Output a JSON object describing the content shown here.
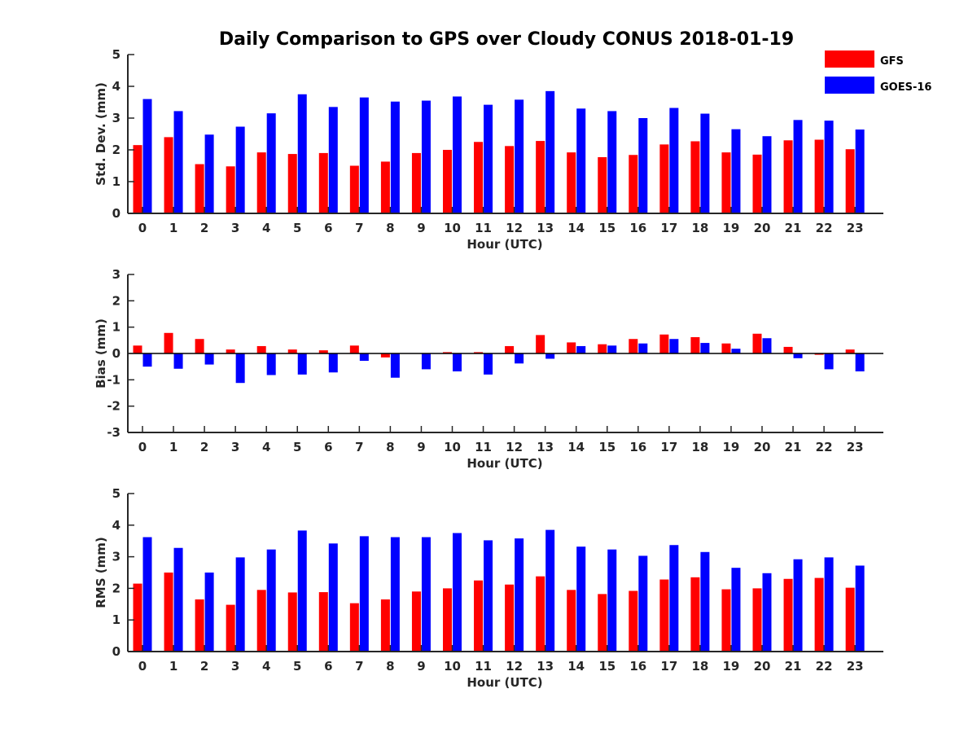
{
  "title": "Daily Comparison to GPS over Cloudy CONUS 2018-01-19",
  "colors": {
    "GFS": "#ff0000",
    "GOES-16": "#0000ff",
    "axis": "#262626"
  },
  "legend": {
    "placement": "top-right",
    "entries": [
      "GFS",
      "GOES-16"
    ]
  },
  "chart_data": [
    {
      "type": "bar",
      "ylabel": "Std. Dev. (mm)",
      "xlabel": "Hour (UTC)",
      "ylim": [
        0,
        5
      ],
      "yticks": [
        0,
        1,
        2,
        3,
        4,
        5
      ],
      "categories": [
        0,
        1,
        2,
        3,
        4,
        5,
        6,
        7,
        8,
        9,
        10,
        11,
        12,
        13,
        14,
        15,
        16,
        17,
        18,
        19,
        20,
        21,
        22,
        23
      ],
      "series": [
        {
          "name": "GFS",
          "values": [
            2.15,
            2.4,
            1.55,
            1.48,
            1.92,
            1.87,
            1.9,
            1.5,
            1.63,
            1.9,
            2.0,
            2.25,
            2.12,
            2.28,
            1.92,
            1.77,
            1.84,
            2.17,
            2.27,
            1.92,
            1.85,
            2.3,
            2.32,
            2.02
          ]
        },
        {
          "name": "GOES-16",
          "values": [
            3.6,
            3.22,
            2.48,
            2.73,
            3.15,
            3.75,
            3.35,
            3.65,
            3.52,
            3.55,
            3.68,
            3.42,
            3.58,
            3.85,
            3.3,
            3.22,
            3.0,
            3.32,
            3.14,
            2.65,
            2.43,
            2.94,
            2.92,
            2.64
          ]
        }
      ]
    },
    {
      "type": "bar",
      "ylabel": "Bias (mm)",
      "xlabel": "Hour (UTC)",
      "ylim": [
        -3,
        3
      ],
      "yticks": [
        -3,
        -2,
        -1,
        0,
        1,
        2,
        3
      ],
      "categories": [
        0,
        1,
        2,
        3,
        4,
        5,
        6,
        7,
        8,
        9,
        10,
        11,
        12,
        13,
        14,
        15,
        16,
        17,
        18,
        19,
        20,
        21,
        22,
        23
      ],
      "series": [
        {
          "name": "GFS",
          "values": [
            0.3,
            0.78,
            0.55,
            0.15,
            0.28,
            0.15,
            0.12,
            0.3,
            -0.15,
            0.0,
            0.05,
            0.05,
            0.28,
            0.7,
            0.42,
            0.35,
            0.55,
            0.72,
            0.62,
            0.38,
            0.75,
            0.25,
            -0.05,
            0.15
          ]
        },
        {
          "name": "GOES-16",
          "values": [
            -0.5,
            -0.58,
            -0.42,
            -1.12,
            -0.82,
            -0.8,
            -0.72,
            -0.28,
            -0.92,
            -0.6,
            -0.68,
            -0.8,
            -0.38,
            -0.2,
            0.28,
            0.3,
            0.38,
            0.55,
            0.4,
            0.18,
            0.58,
            -0.18,
            -0.6,
            -0.68
          ]
        }
      ]
    },
    {
      "type": "bar",
      "ylabel": "RMS (mm)",
      "xlabel": "Hour (UTC)",
      "ylim": [
        0,
        5
      ],
      "yticks": [
        0,
        1,
        2,
        3,
        4,
        5
      ],
      "categories": [
        0,
        1,
        2,
        3,
        4,
        5,
        6,
        7,
        8,
        9,
        10,
        11,
        12,
        13,
        14,
        15,
        16,
        17,
        18,
        19,
        20,
        21,
        22,
        23
      ],
      "series": [
        {
          "name": "GFS",
          "values": [
            2.15,
            2.5,
            1.65,
            1.48,
            1.95,
            1.87,
            1.88,
            1.53,
            1.65,
            1.9,
            2.0,
            2.25,
            2.12,
            2.38,
            1.95,
            1.82,
            1.92,
            2.28,
            2.35,
            1.97,
            2.0,
            2.3,
            2.33,
            2.02
          ]
        },
        {
          "name": "GOES-16",
          "values": [
            3.62,
            3.28,
            2.5,
            2.98,
            3.23,
            3.83,
            3.42,
            3.65,
            3.62,
            3.62,
            3.75,
            3.52,
            3.58,
            3.85,
            3.32,
            3.23,
            3.03,
            3.37,
            3.15,
            2.65,
            2.48,
            2.92,
            2.98,
            2.72
          ]
        }
      ]
    }
  ]
}
